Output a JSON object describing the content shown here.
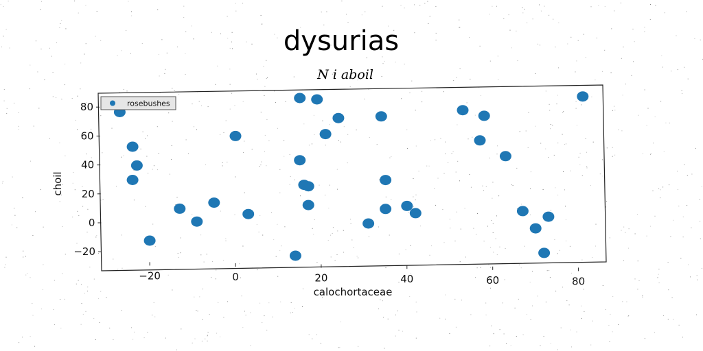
{
  "chart_data": {
    "type": "scatter",
    "title": "dysurias",
    "subtitle": "N i aboil",
    "xlabel": "calochortaceae",
    "ylabel": "choil",
    "xlim": [
      -31,
      87
    ],
    "ylim": [
      -33,
      88
    ],
    "xticks": [
      -20,
      0,
      20,
      40,
      60,
      80
    ],
    "yticks": [
      -20,
      0,
      20,
      40,
      60,
      80
    ],
    "xtick_labels": [
      "−20",
      "0",
      "20",
      "40",
      "60",
      "80"
    ],
    "ytick_labels": [
      "−20",
      "0",
      "20",
      "40",
      "60",
      "80"
    ],
    "grid": false,
    "legend": {
      "position": "top-left",
      "entries": [
        "rosebushes"
      ]
    },
    "series": [
      {
        "name": "rosebushes",
        "color": "#1f77b4",
        "points": [
          {
            "x": -27,
            "y": 77
          },
          {
            "x": -24,
            "y": 53
          },
          {
            "x": -23,
            "y": 40
          },
          {
            "x": -24,
            "y": 30
          },
          {
            "x": -20,
            "y": -12
          },
          {
            "x": -13,
            "y": 10
          },
          {
            "x": -9,
            "y": 1
          },
          {
            "x": -5,
            "y": 14
          },
          {
            "x": 0,
            "y": 60
          },
          {
            "x": 3,
            "y": 6
          },
          {
            "x": 14,
            "y": -23
          },
          {
            "x": 15,
            "y": 43
          },
          {
            "x": 16,
            "y": 26
          },
          {
            "x": 17,
            "y": 25
          },
          {
            "x": 17,
            "y": 12
          },
          {
            "x": 15,
            "y": 86
          },
          {
            "x": 19,
            "y": 85
          },
          {
            "x": 21,
            "y": 61
          },
          {
            "x": 24,
            "y": 72
          },
          {
            "x": 31,
            "y": -1
          },
          {
            "x": 34,
            "y": 73
          },
          {
            "x": 35,
            "y": 29
          },
          {
            "x": 35,
            "y": 9
          },
          {
            "x": 40,
            "y": 11
          },
          {
            "x": 42,
            "y": 6
          },
          {
            "x": 53,
            "y": 77
          },
          {
            "x": 57,
            "y": 56
          },
          {
            "x": 58,
            "y": 73
          },
          {
            "x": 63,
            "y": 45
          },
          {
            "x": 67,
            "y": 7
          },
          {
            "x": 70,
            "y": -5
          },
          {
            "x": 72,
            "y": -22
          },
          {
            "x": 73,
            "y": 3
          },
          {
            "x": 81,
            "y": 86
          }
        ]
      }
    ]
  }
}
